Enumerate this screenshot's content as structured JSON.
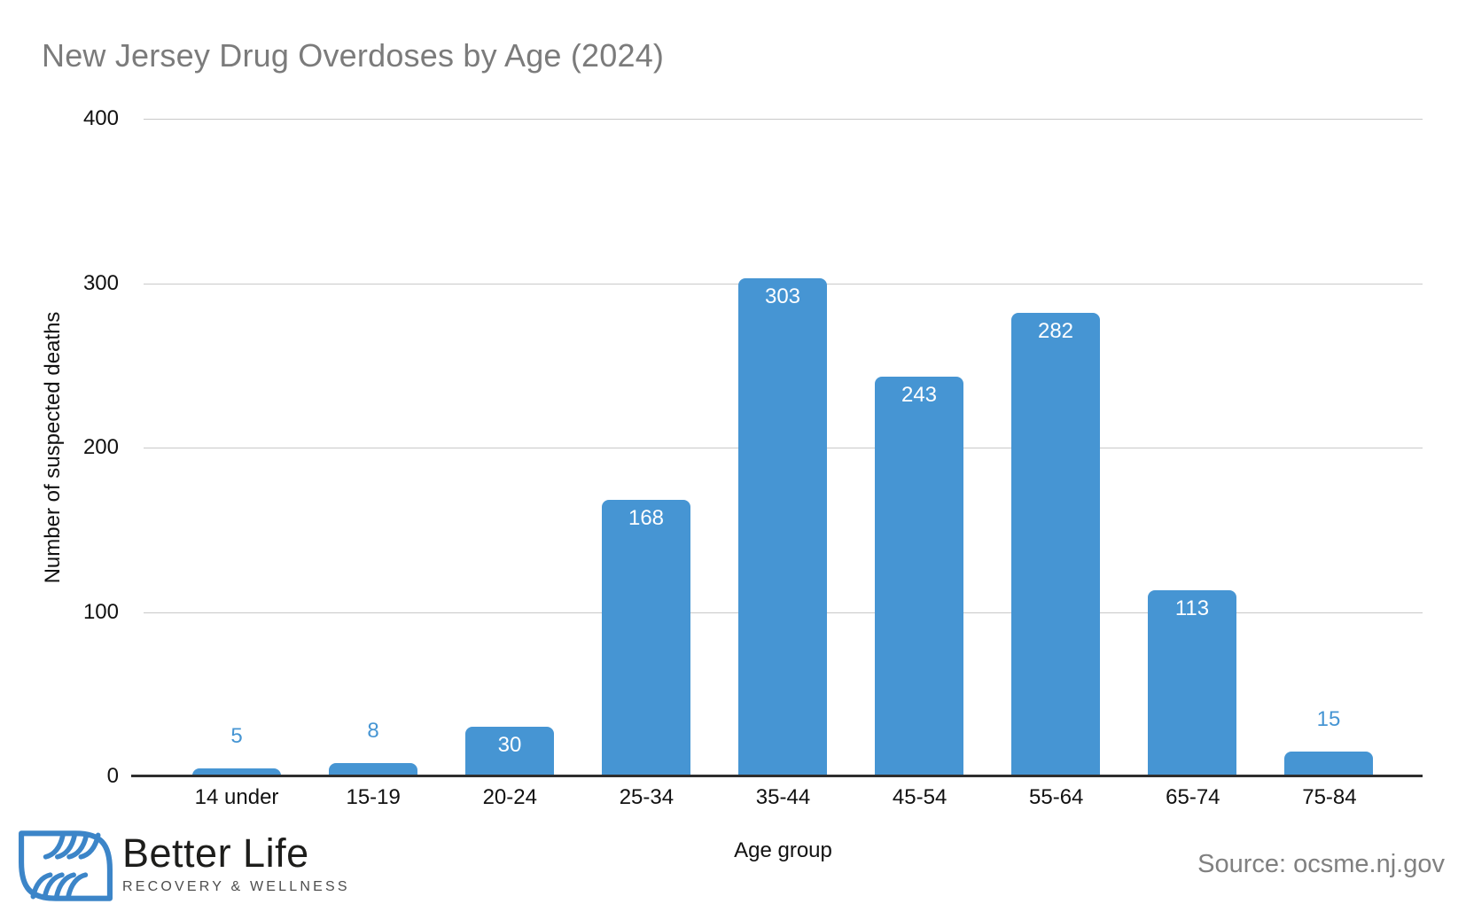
{
  "title": "New Jersey Drug Overdoses by Age (2024)",
  "source": "Source: ocsme.nj.gov",
  "logo": {
    "name": "Better Life",
    "tagline": "RECOVERY & WELLNESS"
  },
  "colors": {
    "bar": "#4695d3",
    "bar_label_inside": "#ffffff",
    "bar_label_outside": "#4695d3",
    "gridline": "#c9c9c9",
    "axis": "#2e2e2e",
    "title_text": "#7b7b7b",
    "source_text": "#808080",
    "logo_blue": "#3c85c8"
  },
  "chart_data": {
    "type": "bar",
    "title": "New Jersey Drug Overdoses by Age (2024)",
    "categories": [
      "14 under",
      "15-19",
      "20-24",
      "25-34",
      "35-44",
      "45-54",
      "55-64",
      "65-74",
      "75-84"
    ],
    "values": [
      5,
      8,
      30,
      168,
      303,
      243,
      282,
      113,
      15
    ],
    "xlabel": "Age group",
    "ylabel": "Number of suspected deaths",
    "ylim": [
      0,
      400
    ],
    "yticks": [
      0,
      100,
      200,
      300,
      400
    ],
    "grid": true,
    "legend": false,
    "bar_labels": true,
    "label_placement": "inside-top, outside-above for small bars"
  }
}
